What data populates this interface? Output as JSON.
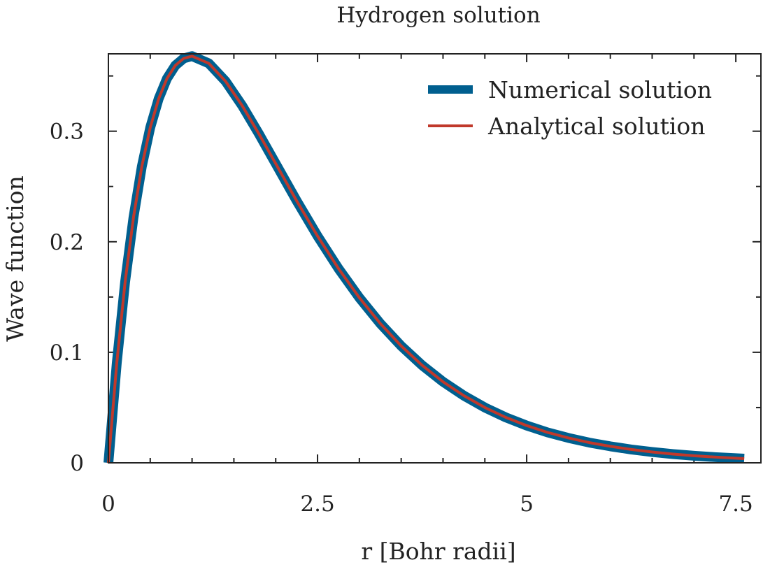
{
  "chart_data": {
    "type": "line",
    "title": "Hydrogen solution",
    "xlabel": "r [Bohr radii]",
    "ylabel": "Wave function",
    "xlim": [
      0,
      7.8
    ],
    "ylim": [
      0,
      0.37
    ],
    "xticks": [
      0,
      2.5,
      5,
      7.5
    ],
    "xtick_labels": [
      "0",
      "2.5",
      "5",
      "7.5"
    ],
    "xminor_step": 0.5,
    "yticks": [
      0,
      0.1,
      0.2,
      0.3
    ],
    "ytick_labels": [
      "0",
      "0.1",
      "0.2",
      "0.3"
    ],
    "yminor_step": 0.05,
    "grid": false,
    "legend_position": "top-right",
    "series": [
      {
        "name": "Numerical solution",
        "color": "#005f8f",
        "style": "thick",
        "x": [
          0,
          0.1,
          0.2,
          0.3,
          0.4,
          0.5,
          0.6,
          0.7,
          0.8,
          0.9,
          1.0,
          1.2,
          1.4,
          1.6,
          1.8,
          2.0,
          2.25,
          2.5,
          2.75,
          3.0,
          3.25,
          3.5,
          3.75,
          4.0,
          4.25,
          4.5,
          4.75,
          5.0,
          5.25,
          5.5,
          5.75,
          6.0,
          6.25,
          6.5,
          6.75,
          7.0,
          7.25,
          7.5,
          7.6
        ],
        "y": [
          0,
          0.0905,
          0.1637,
          0.2222,
          0.2681,
          0.3033,
          0.3293,
          0.3476,
          0.3595,
          0.3659,
          0.3679,
          0.3614,
          0.3452,
          0.323,
          0.2975,
          0.2707,
          0.2371,
          0.2052,
          0.1758,
          0.1494,
          0.126,
          0.1057,
          0.0882,
          0.0733,
          0.0607,
          0.05,
          0.0411,
          0.0337,
          0.0275,
          0.0225,
          0.0183,
          0.0149,
          0.0121,
          0.0098,
          0.0079,
          0.0064,
          0.0052,
          0.0042,
          0.0038
        ]
      },
      {
        "name": "Analytical solution",
        "color": "#c0392b",
        "style": "thin",
        "x": [
          0,
          0.1,
          0.2,
          0.3,
          0.4,
          0.5,
          0.6,
          0.7,
          0.8,
          0.9,
          1.0,
          1.2,
          1.4,
          1.6,
          1.8,
          2.0,
          2.25,
          2.5,
          2.75,
          3.0,
          3.25,
          3.5,
          3.75,
          4.0,
          4.25,
          4.5,
          4.75,
          5.0,
          5.25,
          5.5,
          5.75,
          6.0,
          6.25,
          6.5,
          6.75,
          7.0,
          7.25,
          7.5,
          7.6
        ],
        "y": [
          0,
          0.0905,
          0.1637,
          0.2222,
          0.2681,
          0.3033,
          0.3293,
          0.3476,
          0.3595,
          0.3659,
          0.3679,
          0.3614,
          0.3452,
          0.323,
          0.2975,
          0.2707,
          0.2371,
          0.2052,
          0.1758,
          0.1494,
          0.126,
          0.1057,
          0.0882,
          0.0733,
          0.0607,
          0.05,
          0.0411,
          0.0337,
          0.0275,
          0.0225,
          0.0183,
          0.0149,
          0.0121,
          0.0098,
          0.0079,
          0.0064,
          0.0052,
          0.0042,
          0.0038
        ]
      }
    ]
  }
}
